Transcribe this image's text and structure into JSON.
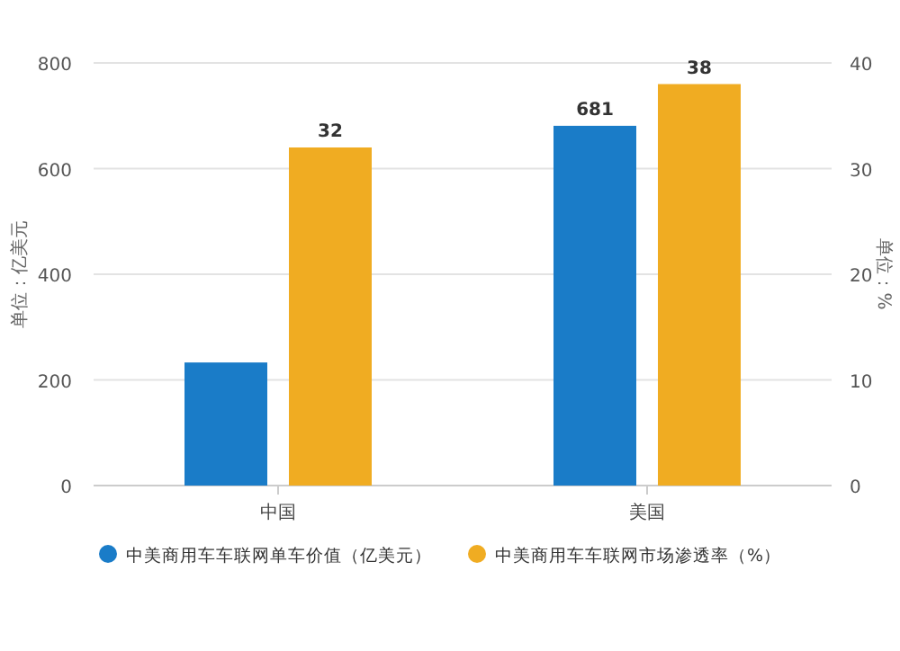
{
  "chart_data": {
    "type": "bar",
    "categories": [
      "中国",
      "美国"
    ],
    "series": [
      {
        "name": "中美商用车车联网单车价值（亿美元）",
        "color": "#1a7cc8",
        "values": [
          233,
          681
        ],
        "value_labels": [
          null,
          "681"
        ]
      },
      {
        "name": "中美商用车车联网市场渗透率（%）",
        "color": "#f0ac22",
        "values": [
          32,
          38
        ],
        "axis": "y2",
        "value_labels": [
          "32",
          "38"
        ]
      }
    ],
    "ylabel": "单位：亿美元",
    "y2label": "单位：%",
    "ylim": [
      0,
      800
    ],
    "yticks": [
      0,
      200,
      400,
      600,
      800
    ],
    "y2lim": [
      0,
      40
    ],
    "y2ticks": [
      0,
      10,
      20,
      30,
      40
    ],
    "grid": "y",
    "legend": "bottom"
  }
}
